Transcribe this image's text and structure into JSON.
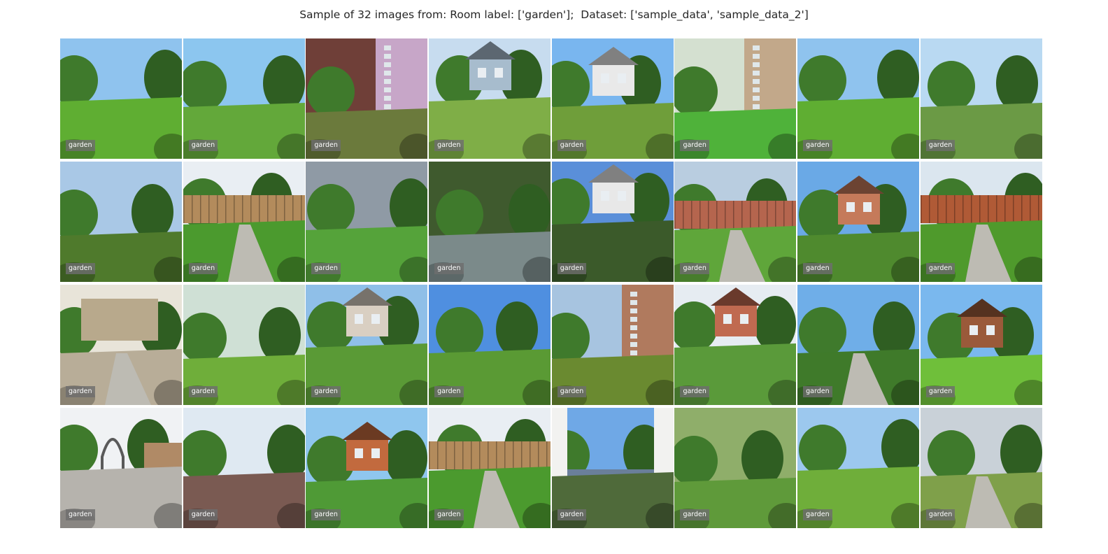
{
  "title": "Sample of 32 images from: Room label: ['garden'];  Dataset: ['sample_data', 'sample_data_2']",
  "tiles": [
    {
      "label": "garden",
      "scene": "lawn",
      "sky": "#8fc3ee",
      "ground": "#5fae32",
      "accent": "#b5524a"
    },
    {
      "label": "garden",
      "scene": "lawn",
      "sky": "#8cc6ef",
      "ground": "#63a83a",
      "accent": "#c99a7a"
    },
    {
      "label": "garden",
      "scene": "brick",
      "sky": "#6f3f38",
      "ground": "#6b7a3c",
      "accent": "#c7a6c8"
    },
    {
      "label": "garden",
      "scene": "house",
      "sky": "#c7dcef",
      "ground": "#7fae47",
      "accent": "#a7bccd"
    },
    {
      "label": "garden",
      "scene": "house",
      "sky": "#79b6ef",
      "ground": "#6f9e3a",
      "accent": "#e9e9e9"
    },
    {
      "label": "garden",
      "scene": "wall",
      "sky": "#d4e0d0",
      "ground": "#4fb23a",
      "accent": "#c2a88a"
    },
    {
      "label": "garden",
      "scene": "lawn",
      "sky": "#8fc3ee",
      "ground": "#5fae32",
      "accent": "#b5524a"
    },
    {
      "label": "garden",
      "scene": "pond",
      "sky": "#b9d9f2",
      "ground": "#6b9a45",
      "accent": "#3d6e34"
    },
    {
      "label": "garden",
      "scene": "trees",
      "sky": "#a9c8e6",
      "ground": "#4f7a2c",
      "accent": "#e6e6c8"
    },
    {
      "label": "garden",
      "scene": "fence",
      "sky": "#e9eef3",
      "ground": "#4b9a2e",
      "accent": "#b38b5c"
    },
    {
      "label": "garden",
      "scene": "trees",
      "sky": "#8f9aa5",
      "ground": "#55a33a",
      "accent": "#d34a5a"
    },
    {
      "label": "garden",
      "scene": "pond",
      "sky": "#3f5a2e",
      "ground": "#7b8a8a",
      "accent": "#b7d16a"
    },
    {
      "label": "garden",
      "scene": "house",
      "sky": "#5a8fd9",
      "ground": "#3b5a2a",
      "accent": "#e8e8e8"
    },
    {
      "label": "garden",
      "scene": "fence",
      "sky": "#b9cde0",
      "ground": "#5fa63a",
      "accent": "#b5654e"
    },
    {
      "label": "garden",
      "scene": "house",
      "sky": "#6aa9e6",
      "ground": "#4f8a2e",
      "accent": "#c57a5a"
    },
    {
      "label": "garden",
      "scene": "fence",
      "sky": "#dbe6ef",
      "ground": "#4f9a2c",
      "accent": "#b05a36"
    },
    {
      "label": "garden",
      "scene": "patio",
      "sky": "#e8e4d9",
      "ground": "#b8ad98",
      "accent": "#8fb7b0"
    },
    {
      "label": "garden",
      "scene": "trees",
      "sky": "#cfe0d5",
      "ground": "#6fae3a",
      "accent": "#d7c63a"
    },
    {
      "label": "garden",
      "scene": "house",
      "sky": "#8fbfe8",
      "ground": "#5a9a36",
      "accent": "#d9cfc2"
    },
    {
      "label": "garden",
      "scene": "lawn",
      "sky": "#4f8fe0",
      "ground": "#5a9a34",
      "accent": "#b8b8b0"
    },
    {
      "label": "garden",
      "scene": "wall",
      "sky": "#a7c4e0",
      "ground": "#6a8a30",
      "accent": "#b07a5e"
    },
    {
      "label": "garden",
      "scene": "house",
      "sky": "#e6ecf2",
      "ground": "#5a9a3a",
      "accent": "#c06a50"
    },
    {
      "label": "garden",
      "scene": "path",
      "sky": "#6faee8",
      "ground": "#3f7a2a",
      "accent": "#a9553e"
    },
    {
      "label": "garden",
      "scene": "house",
      "sky": "#7ab8ee",
      "ground": "#6fbf3a",
      "accent": "#9a5a3a"
    },
    {
      "label": "garden",
      "scene": "arch",
      "sky": "#f0f2f4",
      "ground": "#b6b3ad",
      "accent": "#5a5a5a"
    },
    {
      "label": "garden",
      "scene": "trees",
      "sky": "#dfe9f2",
      "ground": "#7a5a52",
      "accent": "#4f8a3a"
    },
    {
      "label": "garden",
      "scene": "shed",
      "sky": "#8fc6ee",
      "ground": "#4f9a36",
      "accent": "#c26a3e"
    },
    {
      "label": "garden",
      "scene": "fence",
      "sky": "#e9eef3",
      "ground": "#4b9a2e",
      "accent": "#b38b5c"
    },
    {
      "label": "garden",
      "scene": "window",
      "sky": "#6fa8e6",
      "ground": "#4f6a3a",
      "accent": "#f2f2f0"
    },
    {
      "label": "garden",
      "scene": "trees",
      "sky": "#8fae6a",
      "ground": "#5f9a3a",
      "accent": "#b07a52"
    },
    {
      "label": "garden",
      "scene": "trees",
      "sky": "#9cc8ee",
      "ground": "#6fae3a",
      "accent": "#a77a4a"
    },
    {
      "label": "garden",
      "scene": "path",
      "sky": "#c9d1d8",
      "ground": "#7fa04a",
      "accent": "#6a5a4a"
    }
  ]
}
